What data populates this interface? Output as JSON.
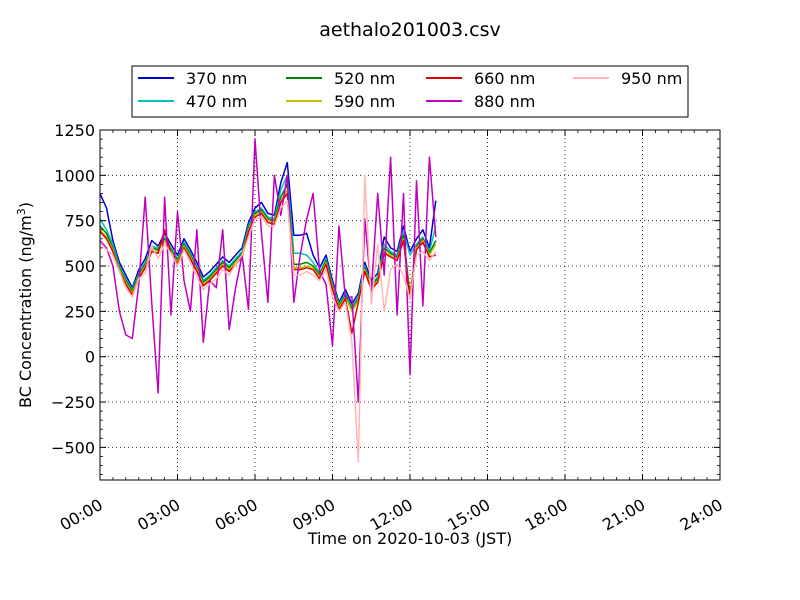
{
  "chart_data": {
    "type": "line",
    "title": "aethalo201003.csv",
    "xlabel": "Time on 2020-10-03 (JST)",
    "ylabel": "BC Concentration (ng/m3)",
    "ylabel_main": "BC Concentration (ng/m",
    "ylabel_sup": "3",
    "ylabel_end": ")",
    "xlim": [
      0,
      24
    ],
    "ylim": [
      -680,
      1250
    ],
    "x_ticks": [
      0,
      3,
      6,
      9,
      12,
      15,
      18,
      21,
      24
    ],
    "x_tick_labels": [
      "00:00",
      "03:00",
      "06:00",
      "09:00",
      "12:00",
      "15:00",
      "18:00",
      "21:00",
      "24:00"
    ],
    "y_ticks": [
      -500,
      -250,
      0,
      250,
      500,
      750,
      1000,
      1250
    ],
    "y_tick_labels": [
      "−500",
      "−250",
      "0",
      "250",
      "500",
      "750",
      "1000",
      "1250"
    ],
    "grid": true,
    "legend_position": "top, above plot",
    "x": [
      0.0,
      0.25,
      0.5,
      0.75,
      1.0,
      1.25,
      1.5,
      1.75,
      2.0,
      2.25,
      2.5,
      2.75,
      3.0,
      3.25,
      3.5,
      3.75,
      4.0,
      4.25,
      4.5,
      4.75,
      5.0,
      5.25,
      5.5,
      5.75,
      6.0,
      6.25,
      6.5,
      6.75,
      7.0,
      7.25,
      7.5,
      7.75,
      8.0,
      8.25,
      8.5,
      8.75,
      9.0,
      9.25,
      9.5,
      9.75,
      10.0,
      10.25,
      10.5,
      10.75,
      11.0,
      11.25,
      11.5,
      11.75,
      12.0,
      12.25,
      12.5,
      12.75,
      13.0
    ],
    "series": [
      {
        "name": "370 nm",
        "color": "#0000cc",
        "values": [
          900,
          820,
          640,
          520,
          450,
          380,
          480,
          540,
          640,
          610,
          680,
          620,
          560,
          650,
          590,
          520,
          440,
          470,
          510,
          550,
          520,
          560,
          600,
          740,
          820,
          850,
          790,
          780,
          960,
          1070,
          670,
          670,
          680,
          560,
          490,
          560,
          420,
          300,
          370,
          290,
          350,
          520,
          420,
          460,
          660,
          600,
          580,
          720,
          580,
          650,
          700,
          600,
          860
        ]
      },
      {
        "name": "470 nm",
        "color": "#00c0c0",
        "values": [
          760,
          700,
          620,
          500,
          430,
          370,
          460,
          520,
          610,
          600,
          660,
          600,
          540,
          630,
          570,
          500,
          420,
          450,
          490,
          530,
          500,
          540,
          580,
          720,
          800,
          820,
          770,
          760,
          920,
          1000,
          570,
          570,
          560,
          520,
          460,
          540,
          400,
          290,
          350,
          270,
          330,
          500,
          400,
          440,
          620,
          580,
          560,
          690,
          560,
          620,
          660,
          580,
          720
        ]
      },
      {
        "name": "520 nm",
        "color": "#008000",
        "values": [
          720,
          680,
          600,
          490,
          420,
          360,
          450,
          510,
          600,
          590,
          650,
          590,
          530,
          620,
          560,
          490,
          410,
          440,
          480,
          520,
          490,
          530,
          570,
          710,
          790,
          810,
          760,
          750,
          880,
          950,
          510,
          510,
          520,
          500,
          450,
          530,
          390,
          280,
          340,
          260,
          320,
          490,
          390,
          430,
          600,
          570,
          550,
          670,
          340,
          610,
          650,
          570,
          640
        ]
      },
      {
        "name": "590 nm",
        "color": "#bfbf00",
        "values": [
          700,
          660,
          590,
          480,
          410,
          350,
          440,
          500,
          590,
          580,
          640,
          580,
          520,
          610,
          550,
          480,
          400,
          430,
          470,
          510,
          480,
          520,
          560,
          700,
          780,
          800,
          750,
          740,
          860,
          920,
          490,
          490,
          500,
          490,
          440,
          520,
          380,
          270,
          330,
          250,
          310,
          480,
          380,
          420,
          580,
          560,
          540,
          650,
          330,
          600,
          640,
          560,
          620
        ]
      },
      {
        "name": "660 nm",
        "color": "#e00000",
        "values": [
          690,
          650,
          580,
          470,
          400,
          340,
          430,
          490,
          580,
          570,
          700,
          570,
          510,
          600,
          540,
          470,
          390,
          420,
          460,
          500,
          470,
          510,
          550,
          690,
          770,
          790,
          740,
          730,
          850,
          900,
          480,
          480,
          490,
          480,
          430,
          510,
          370,
          260,
          320,
          130,
          300,
          470,
          370,
          410,
          570,
          550,
          530,
          640,
          320,
          590,
          630,
          550,
          560
        ]
      },
      {
        "name": "880 nm",
        "color": "#c000c0",
        "values": [
          640,
          600,
          500,
          250,
          120,
          100,
          400,
          880,
          300,
          -200,
          880,
          230,
          800,
          420,
          250,
          700,
          80,
          420,
          380,
          700,
          150,
          380,
          560,
          260,
          1200,
          680,
          300,
          1000,
          780,
          1000,
          300,
          560,
          760,
          900,
          470,
          400,
          60,
          720,
          320,
          330,
          -250,
          760,
          360,
          900,
          450,
          1100,
          230,
          900,
          -100,
          970,
          280,
          1100,
          660
        ]
      },
      {
        "name": "950 nm",
        "color": "#ffb6b6",
        "values": [
          630,
          590,
          560,
          470,
          380,
          330,
          430,
          460,
          610,
          540,
          620,
          570,
          500,
          590,
          520,
          440,
          370,
          400,
          430,
          480,
          450,
          510,
          560,
          660,
          760,
          770,
          720,
          720,
          820,
          860,
          450,
          450,
          470,
          450,
          420,
          480,
          330,
          250,
          300,
          80,
          -580,
          1000,
          290,
          620,
          250,
          480,
          510,
          450,
          320,
          560,
          580,
          530,
          580
        ]
      }
    ]
  }
}
